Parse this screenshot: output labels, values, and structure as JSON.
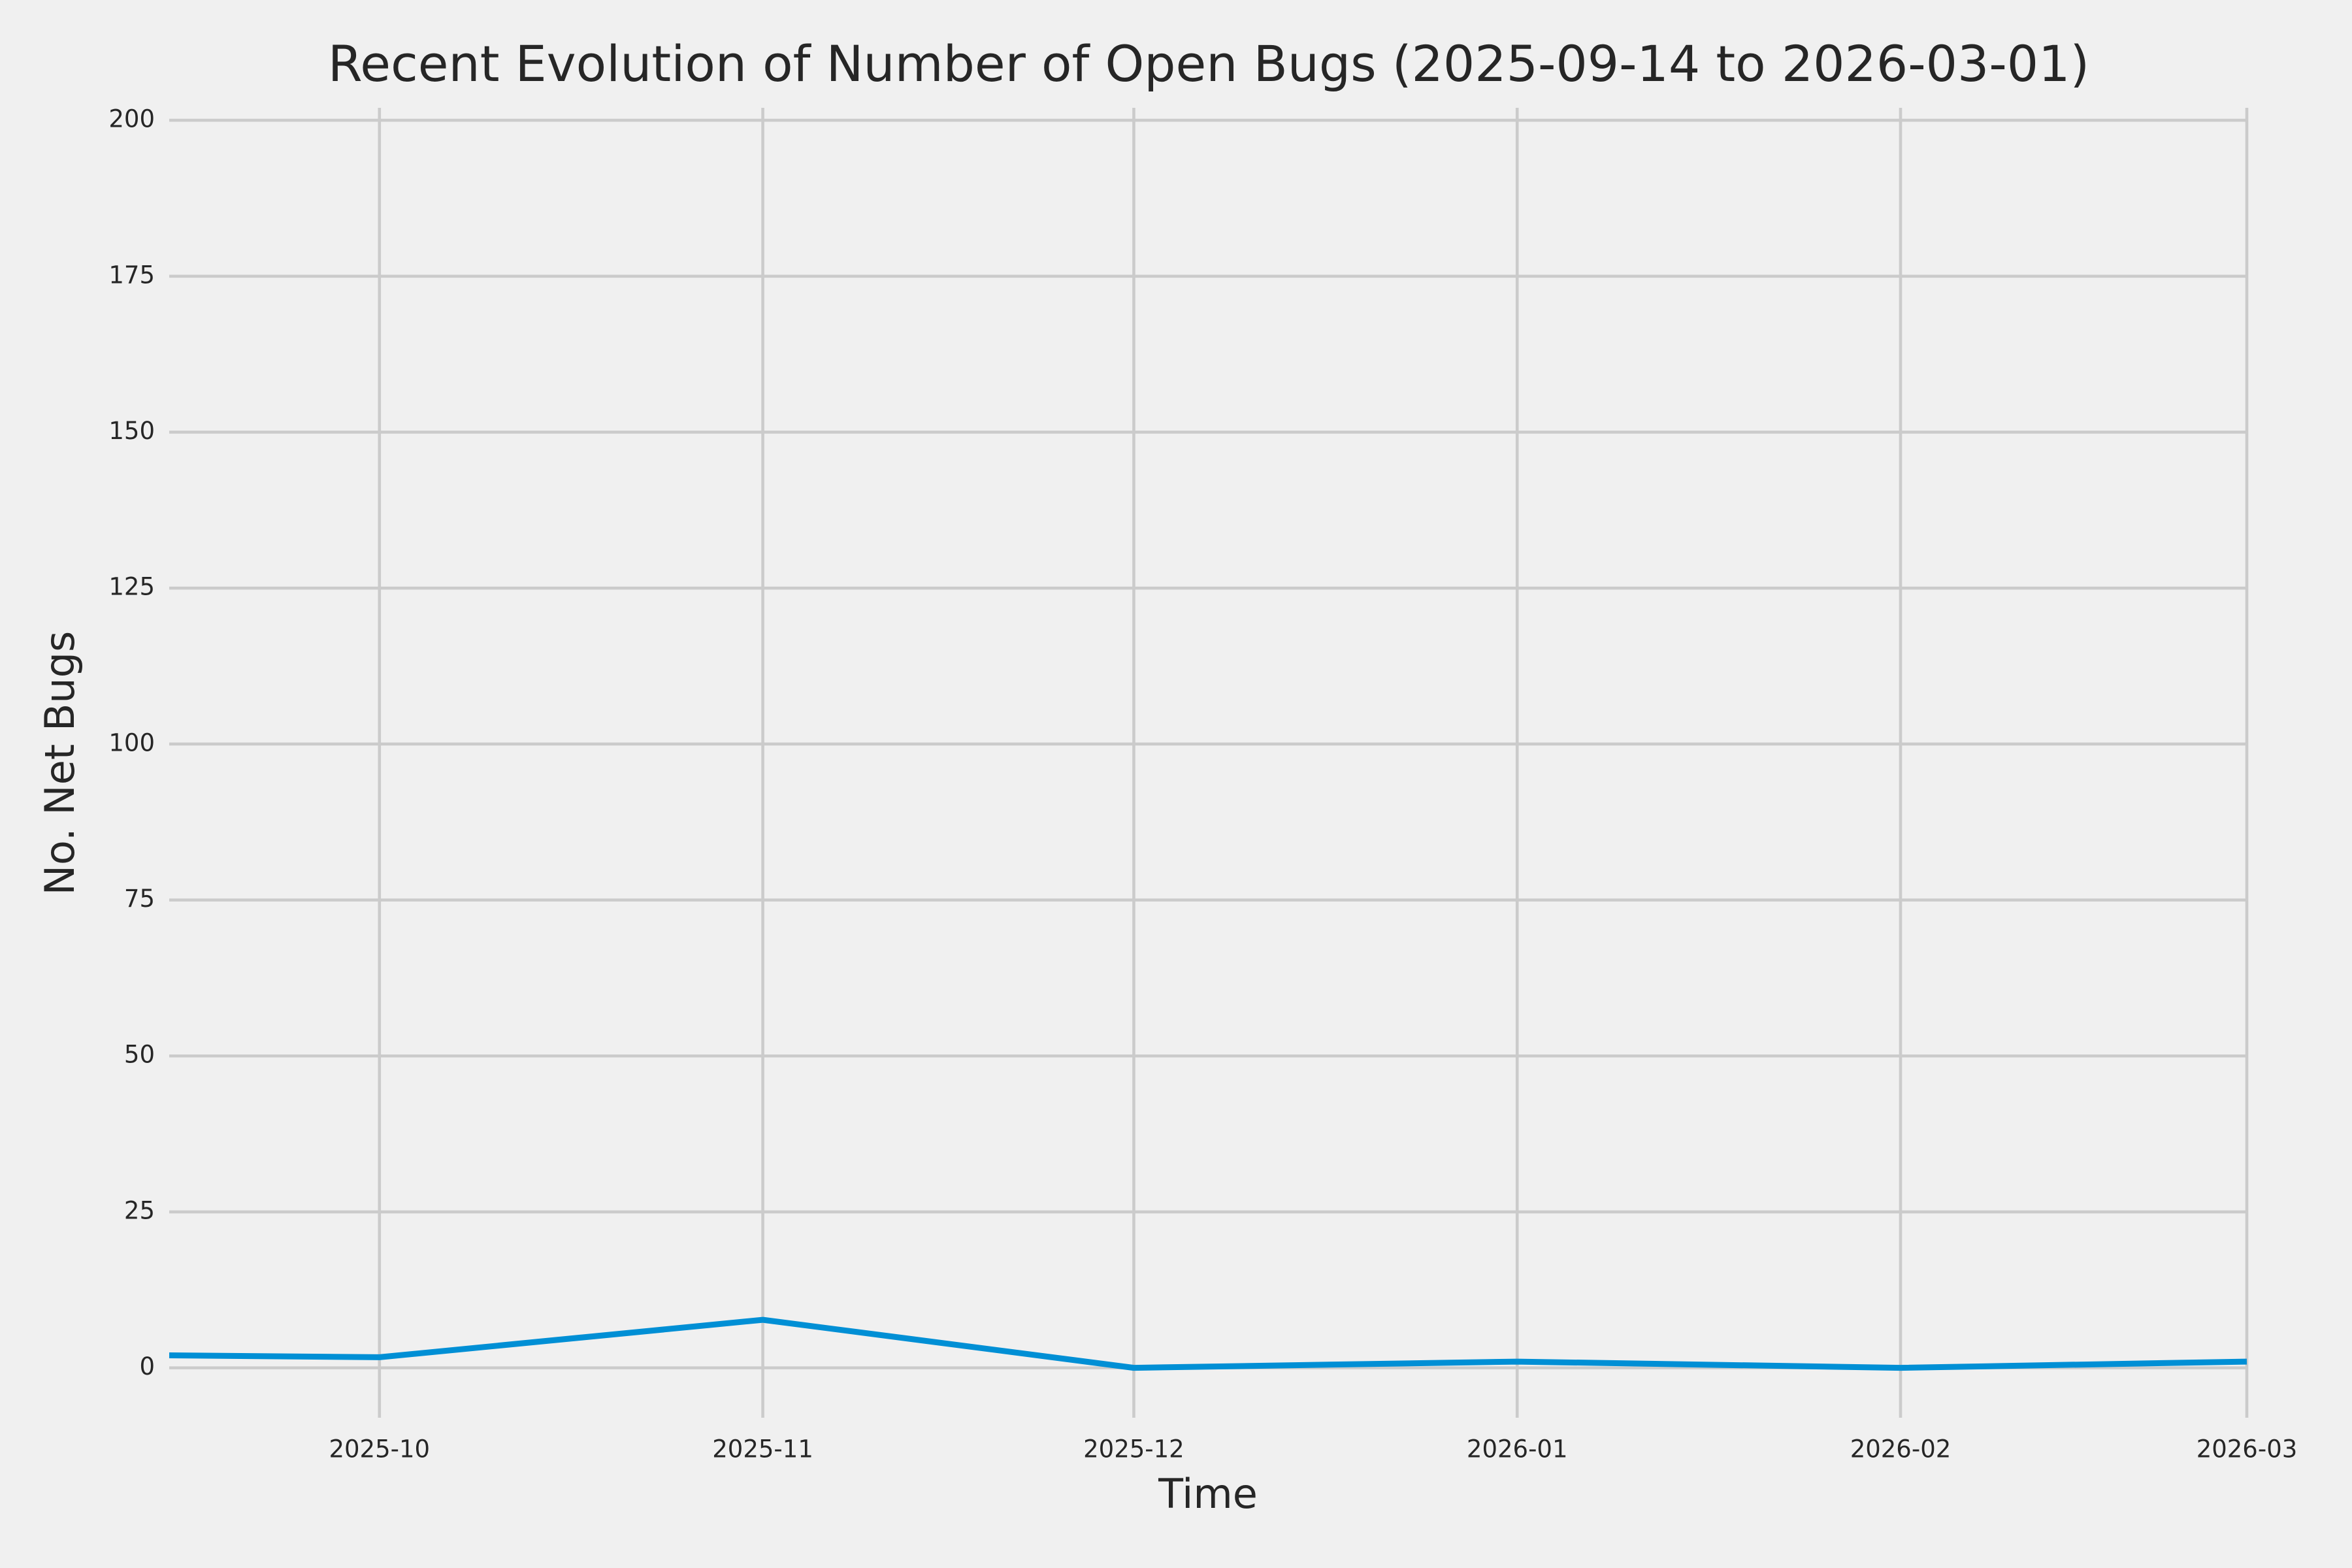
{
  "chart_data": {
    "type": "line",
    "title": "Recent Evolution of Number of Open Bugs (2025-09-14 to 2026-03-01)",
    "x_label": "Time",
    "y_label": "No. Net Bugs",
    "x": [
      "2025-09-14",
      "2025-10",
      "2025-11",
      "2025-12",
      "2026-01",
      "2026-02",
      "2026-03"
    ],
    "series": [
      {
        "color": "#008fd5",
        "values": [
          2,
          1.7,
          7.7,
          0,
          1,
          0,
          1
        ]
      }
    ],
    "xlim": [
      "2025-09-14",
      "2026-03-01"
    ],
    "xticks": [
      "2025-10",
      "2025-11",
      "2025-12",
      "2026-01",
      "2026-02",
      "2026-03"
    ],
    "ylim": [
      -8,
      202
    ],
    "yticks": [
      0,
      25,
      50,
      75,
      100,
      125,
      150,
      175,
      200
    ],
    "grid": true
  }
}
